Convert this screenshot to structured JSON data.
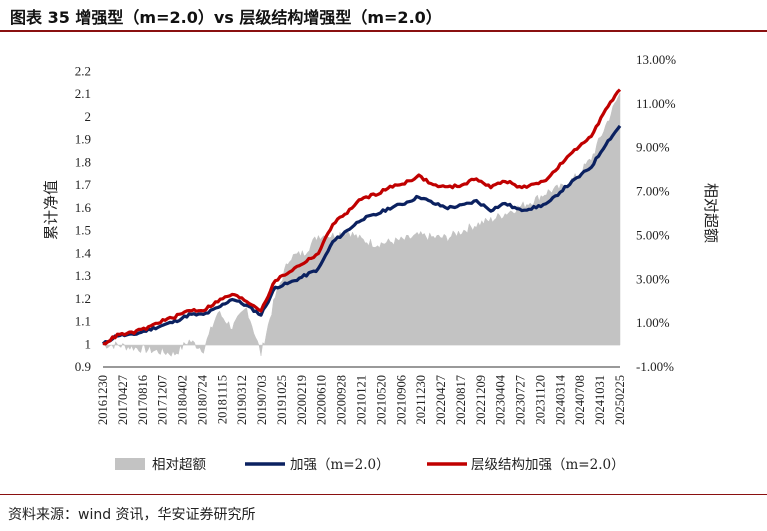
{
  "title": "图表 35  增强型（m=2.0）vs 层级结构增强型（m=2.0）",
  "source": "资料来源：wind 资讯，华安证券研究所",
  "colors": {
    "area": "#c3c3c3",
    "navy": "#0b2160",
    "red": "#c00000",
    "rule": "#8a1010"
  },
  "chart_data": {
    "type": "line+area",
    "ylabel_left": "累计净值",
    "ylabel_right": "相对超额",
    "ylim_left": [
      0.9,
      2.25
    ],
    "ylim_right": [
      -0.01,
      0.13
    ],
    "yticks_left": [
      "2.2",
      "2.1",
      "2",
      "1.9",
      "1.8",
      "1.7",
      "1.6",
      "1.5",
      "1.4",
      "1.3",
      "1.2",
      "1.1",
      "1",
      "0.9"
    ],
    "yticks_right": [
      "13.00%",
      "11.00%",
      "9.00%",
      "7.00%",
      "5.00%",
      "3.00%",
      "1.00%",
      "-1.00%"
    ],
    "x_tick_labels": [
      "20161230",
      "20170427",
      "20170816",
      "20171207",
      "20180402",
      "20180724",
      "20181115",
      "20190312",
      "20190703",
      "20191025",
      "20200219",
      "20200610",
      "20200928",
      "20210121",
      "20210520",
      "20210906",
      "20211230",
      "20220427",
      "20220817",
      "20221209",
      "20230404",
      "20230727",
      "20231120",
      "20240314",
      "20240708",
      "20241031",
      "20250225"
    ],
    "series": [
      {
        "name": "相对超额",
        "axis": "right",
        "type": "area",
        "values": [
          0.0,
          0.0,
          -0.001,
          -0.002,
          -0.003,
          -0.004,
          0.002,
          -0.002,
          0.015,
          0.008,
          0.017,
          -0.004,
          0.022,
          0.04,
          0.042,
          0.05,
          0.05,
          0.052,
          0.048,
          0.046,
          0.047,
          0.048,
          0.05,
          0.049,
          0.049,
          0.052,
          0.055,
          0.057,
          0.06,
          0.063,
          0.066,
          0.07,
          0.072,
          0.077,
          0.085,
          0.1,
          0.115
        ]
      },
      {
        "name": "加强（m=2.0）",
        "axis": "left",
        "type": "line",
        "values": [
          1.0,
          1.04,
          1.04,
          1.06,
          1.08,
          1.1,
          1.13,
          1.13,
          1.16,
          1.2,
          1.17,
          1.13,
          1.25,
          1.27,
          1.3,
          1.33,
          1.45,
          1.5,
          1.55,
          1.57,
          1.6,
          1.62,
          1.65,
          1.62,
          1.6,
          1.61,
          1.63,
          1.59,
          1.62,
          1.59,
          1.6,
          1.62,
          1.68,
          1.73,
          1.78,
          1.88,
          1.96
        ]
      },
      {
        "name": "层级结构加强（m=2.0）",
        "axis": "left",
        "type": "line",
        "values": [
          1.0,
          1.04,
          1.05,
          1.07,
          1.1,
          1.12,
          1.15,
          1.15,
          1.19,
          1.22,
          1.19,
          1.15,
          1.28,
          1.32,
          1.36,
          1.4,
          1.53,
          1.58,
          1.64,
          1.66,
          1.69,
          1.71,
          1.74,
          1.7,
          1.69,
          1.7,
          1.73,
          1.69,
          1.72,
          1.69,
          1.7,
          1.73,
          1.8,
          1.86,
          1.92,
          2.03,
          2.12
        ]
      }
    ]
  }
}
